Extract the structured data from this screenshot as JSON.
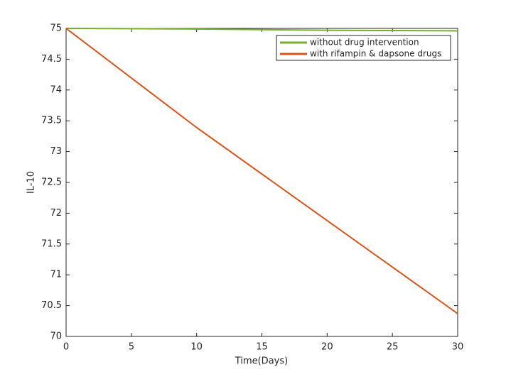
{
  "chart_data": {
    "type": "line",
    "xlabel": "Time(Days)",
    "ylabel": "IL-10",
    "x": [
      0,
      10,
      20,
      30
    ],
    "series": [
      {
        "name": "without drug intervention",
        "color": "#77ac30",
        "values": [
          75,
          74.99,
          74.97,
          74.96
        ]
      },
      {
        "name": "with rifampin & dapsone drugs",
        "color": "#d95319",
        "values": [
          75,
          73.39,
          71.88,
          70.37
        ]
      }
    ],
    "xlim": [
      0,
      30
    ],
    "xticks": [
      0,
      5,
      10,
      15,
      20,
      25,
      30
    ],
    "ylim": [
      70,
      75
    ],
    "yticks": [
      70,
      70.5,
      71,
      71.5,
      72,
      72.5,
      73,
      73.5,
      74,
      74.5,
      75
    ],
    "legend": "top-right"
  }
}
